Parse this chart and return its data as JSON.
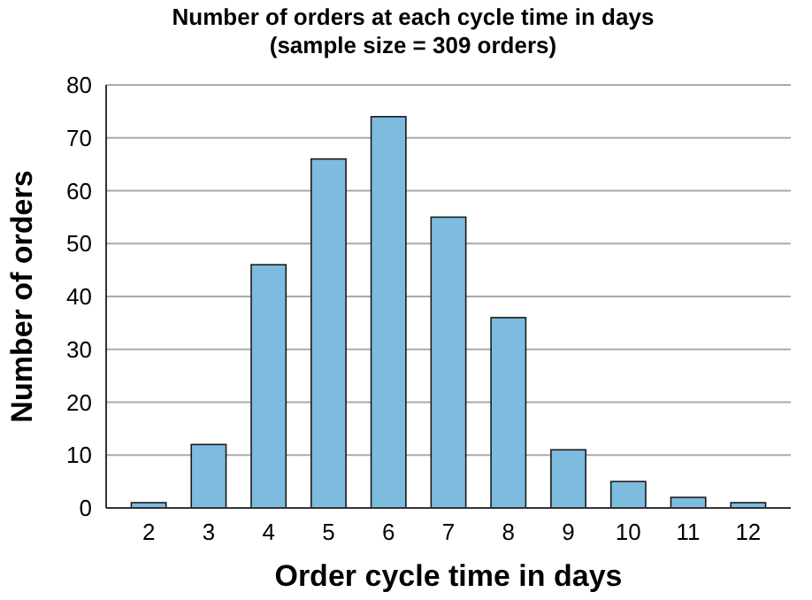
{
  "chart_data": {
    "type": "bar",
    "title": "Number of orders at each cycle time in days\n(sample size = 309 orders)",
    "xlabel": "Order cycle time in days",
    "ylabel": "Number of orders",
    "categories": [
      "2",
      "3",
      "4",
      "5",
      "6",
      "7",
      "8",
      "9",
      "10",
      "11",
      "12"
    ],
    "values": [
      1,
      12,
      46,
      66,
      74,
      55,
      36,
      11,
      5,
      2,
      1
    ],
    "color": "#7dbcde",
    "ylim": [
      0,
      80
    ],
    "yticks": [
      0,
      10,
      20,
      30,
      40,
      50,
      60,
      70,
      80
    ],
    "grid": "y"
  }
}
